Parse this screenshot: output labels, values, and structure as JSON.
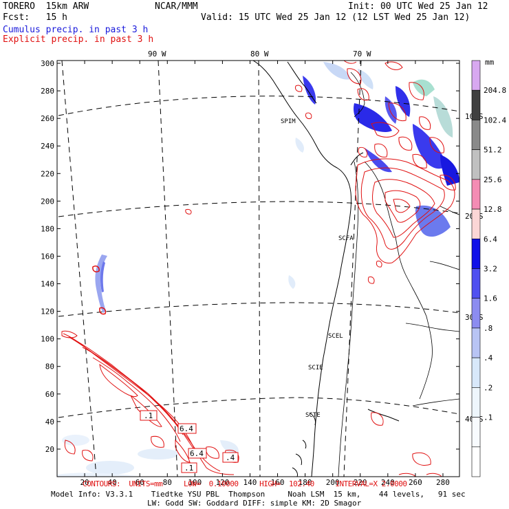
{
  "header": {
    "model": "TORERO  15km ARW",
    "center": "NCAR/MMM",
    "init": "Init: 00 UTC Wed 25 Jan 12",
    "fcst": "Fcst:   15 h",
    "valid": "Valid: 15 UTC Wed 25 Jan 12 (12 LST Wed 25 Jan 12)",
    "cumulus": "Cumulus precip. in past 3 h",
    "explicit": "Explicit precip. in past 3 h"
  },
  "colors": {
    "cumulus_text": "#1a1adb",
    "explicit_text": "#e01010",
    "explicit_contour": "#e01010"
  },
  "map": {
    "x_ticks": [
      "20",
      "40",
      "60",
      "80",
      "100",
      "120",
      "140",
      "160",
      "180",
      "200",
      "220",
      "240",
      "260",
      "280"
    ],
    "y_ticks": [
      "20",
      "40",
      "60",
      "80",
      "100",
      "120",
      "140",
      "160",
      "180",
      "200",
      "220",
      "240",
      "260",
      "280",
      "300"
    ],
    "lon_labels": [
      "90 W",
      "80 W",
      "70 W"
    ],
    "lat_labels": [
      "10 S",
      "20 S",
      "30 S",
      "40 S"
    ],
    "stations": [
      "SPIM",
      "SCFA",
      "SCEL",
      "SCIE",
      "SCTE"
    ],
    "contour_labels": [
      ".1",
      "6.4",
      "6.4",
      ".1",
      ".4"
    ]
  },
  "colorbar": {
    "unit": "mm",
    "levels": [
      "204.8",
      "102.4",
      "51.2",
      "25.6",
      "12.8",
      "6.4",
      "3.2",
      "1.6",
      ".8",
      ".4",
      ".2",
      ".1"
    ],
    "colors": [
      "#d8a8f0",
      "#404040",
      "#8a8a8a",
      "#c0c0c0",
      "#f48cb4",
      "#fbd6d6",
      "#1010e8",
      "#5050f0",
      "#8c8cf0",
      "#b8c4f4",
      "#d8e8fa",
      "#eef6fc",
      "#f8fbfe",
      "#ffffff"
    ]
  },
  "footer": {
    "contours": "CONTOURS:  UNITS=mm     LOW=  0.10000     HIGH=  102.40     INTERVAL=X 2.0000",
    "line1": "Model Info: V3.3.1    Tiedtke YSU PBL  Thompson     Noah LSM  15 km,    44 levels,   91 sec",
    "line2": "LW: Godd SW: Goddard DIFF: simple KM: 2D Smagor"
  }
}
